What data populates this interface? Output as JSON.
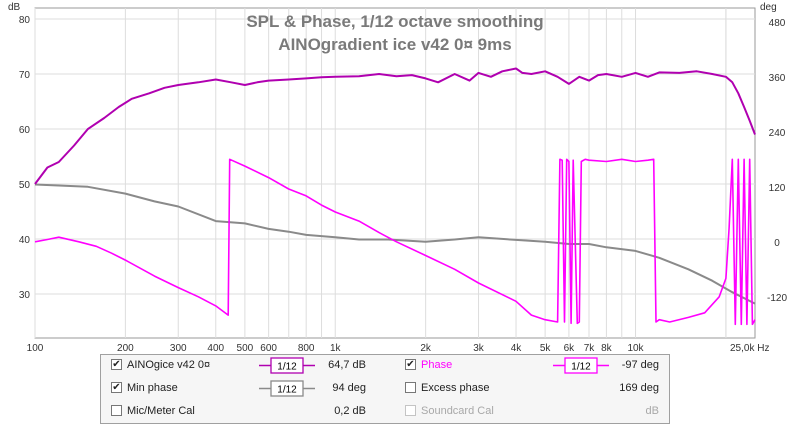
{
  "chart_data": {
    "type": "line",
    "title": "SPL & Phase, 1/12 octave smoothing",
    "subtitle": "AINOgradient ice v42 0¤ 9ms",
    "ylabel_left": "dB",
    "ylabel_right": "deg",
    "xlabel": "Hz",
    "x_scale": "log",
    "xlim": [
      100,
      25000
    ],
    "ylim_left": [
      22,
      82
    ],
    "ylim_right": [
      -210,
      510
    ],
    "grid": true,
    "x_ticks": [
      "100",
      "200",
      "300",
      "400",
      "500",
      "600",
      "800",
      "1k",
      "2k",
      "3k",
      "4k",
      "5k",
      "6k",
      "7k",
      "8k",
      "10k",
      "25,0k Hz"
    ],
    "x_tick_values": [
      100,
      200,
      300,
      400,
      500,
      600,
      800,
      1000,
      2000,
      3000,
      4000,
      5000,
      6000,
      7000,
      8000,
      10000,
      25000
    ],
    "y_ticks_left": [
      30,
      40,
      50,
      60,
      70,
      80
    ],
    "y_ticks_right": [
      -120,
      0,
      120,
      240,
      360,
      480
    ],
    "series": [
      {
        "name": "AINOgice v42 0¤",
        "axis": "left",
        "color": "#b000b0",
        "x": [
          100,
          110,
          120,
          135,
          150,
          170,
          190,
          210,
          240,
          270,
          300,
          350,
          400,
          450,
          500,
          550,
          600,
          700,
          800,
          900,
          1000,
          1200,
          1400,
          1600,
          1800,
          2000,
          2200,
          2500,
          2800,
          3000,
          3300,
          3600,
          4000,
          4200,
          4500,
          5000,
          5500,
          6000,
          6500,
          7000,
          7500,
          8000,
          9000,
          10000,
          11000,
          12000,
          14000,
          16000,
          18000,
          20000,
          21000,
          22000,
          23000,
          24000,
          25000
        ],
        "y": [
          50,
          53,
          54,
          57,
          60,
          62,
          64,
          65.5,
          66.5,
          67.5,
          68,
          68.5,
          69,
          68.5,
          68,
          68.5,
          68.8,
          69,
          69.2,
          69.4,
          69.5,
          69.6,
          70,
          69.6,
          69.8,
          69.2,
          68.5,
          70,
          68.8,
          70.2,
          69.5,
          70.5,
          71,
          70.2,
          70,
          70.5,
          69.5,
          68.2,
          69.5,
          68.8,
          69.8,
          70,
          69.5,
          70.2,
          69.5,
          70.3,
          70.2,
          70.5,
          70,
          69.5,
          68.5,
          66.5,
          64,
          61.5,
          59
        ]
      },
      {
        "name": "Min phase",
        "axis": "right",
        "color": "#8a8a8a",
        "x": [
          100,
          150,
          200,
          250,
          300,
          400,
          500,
          600,
          700,
          800,
          1000,
          1200,
          1500,
          2000,
          2500,
          3000,
          4000,
          5000,
          6000,
          7000,
          8000,
          10000,
          12000,
          15000,
          18000,
          21000,
          25000
        ],
        "y": [
          125,
          120,
          105,
          88,
          77,
          45,
          40,
          28,
          22,
          15,
          10,
          5,
          5,
          0,
          5,
          10,
          4,
          0,
          -5,
          -5,
          -12,
          -20,
          -35,
          -60,
          -85,
          -110,
          -135
        ]
      },
      {
        "name": "Phase",
        "axis": "right",
        "color": "#ff00ff",
        "x": [
          100,
          110,
          120,
          140,
          160,
          180,
          200,
          250,
          300,
          350,
          400,
          440,
          445,
          500,
          600,
          700,
          800,
          900,
          1000,
          1200,
          1400,
          1600,
          2000,
          2500,
          3000,
          4000,
          4500,
          5000,
          5500,
          5600,
          5700,
          5800,
          5900,
          6000,
          6100,
          6200,
          6400,
          6500,
          6600,
          6800,
          7000,
          8000,
          9000,
          10000,
          11000,
          11500,
          11700,
          12000,
          13000,
          15000,
          17000,
          19000,
          20000,
          20500,
          21000,
          21500,
          22000,
          22500,
          23000,
          23500,
          24000,
          24500,
          25000
        ],
        "y": [
          0,
          5,
          10,
          0,
          -10,
          -25,
          -40,
          -75,
          -100,
          -120,
          -140,
          -160,
          180,
          165,
          140,
          115,
          100,
          80,
          65,
          45,
          20,
          0,
          -30,
          -60,
          -90,
          -130,
          -160,
          -170,
          -175,
          180,
          178,
          -175,
          180,
          175,
          -178,
          178,
          -178,
          -175,
          175,
          180,
          178,
          175,
          180,
          175,
          178,
          180,
          -175,
          -170,
          -175,
          -165,
          -155,
          -120,
          -80,
          30,
          180,
          -180,
          180,
          -180,
          180,
          -180,
          180,
          -180,
          -170
        ]
      }
    ]
  },
  "legend": {
    "rows": [
      {
        "left": {
          "label": "AINOgice v42 0¤",
          "checked": true,
          "smoothing": "1/12",
          "value": "64,7 dB",
          "color": "#b000b0"
        },
        "right": {
          "label": "Phase",
          "checked": true,
          "smoothing": "1/12",
          "value": "-97 deg",
          "color": "#ff00ff"
        }
      },
      {
        "left": {
          "label": "Min phase",
          "checked": true,
          "smoothing": "1/12",
          "value": "94 deg",
          "color": "#8a8a8a"
        },
        "right": {
          "label": "Excess phase",
          "checked": false,
          "smoothing": "",
          "value": "169 deg",
          "color": ""
        }
      },
      {
        "left": {
          "label": "Mic/Meter Cal",
          "checked": false,
          "smoothing": "",
          "value": "0,2 dB",
          "color": ""
        },
        "right": {
          "label": "Soundcard Cal",
          "checked": false,
          "smoothing": "",
          "value": "dB",
          "color": "",
          "disabled": true
        }
      }
    ]
  }
}
